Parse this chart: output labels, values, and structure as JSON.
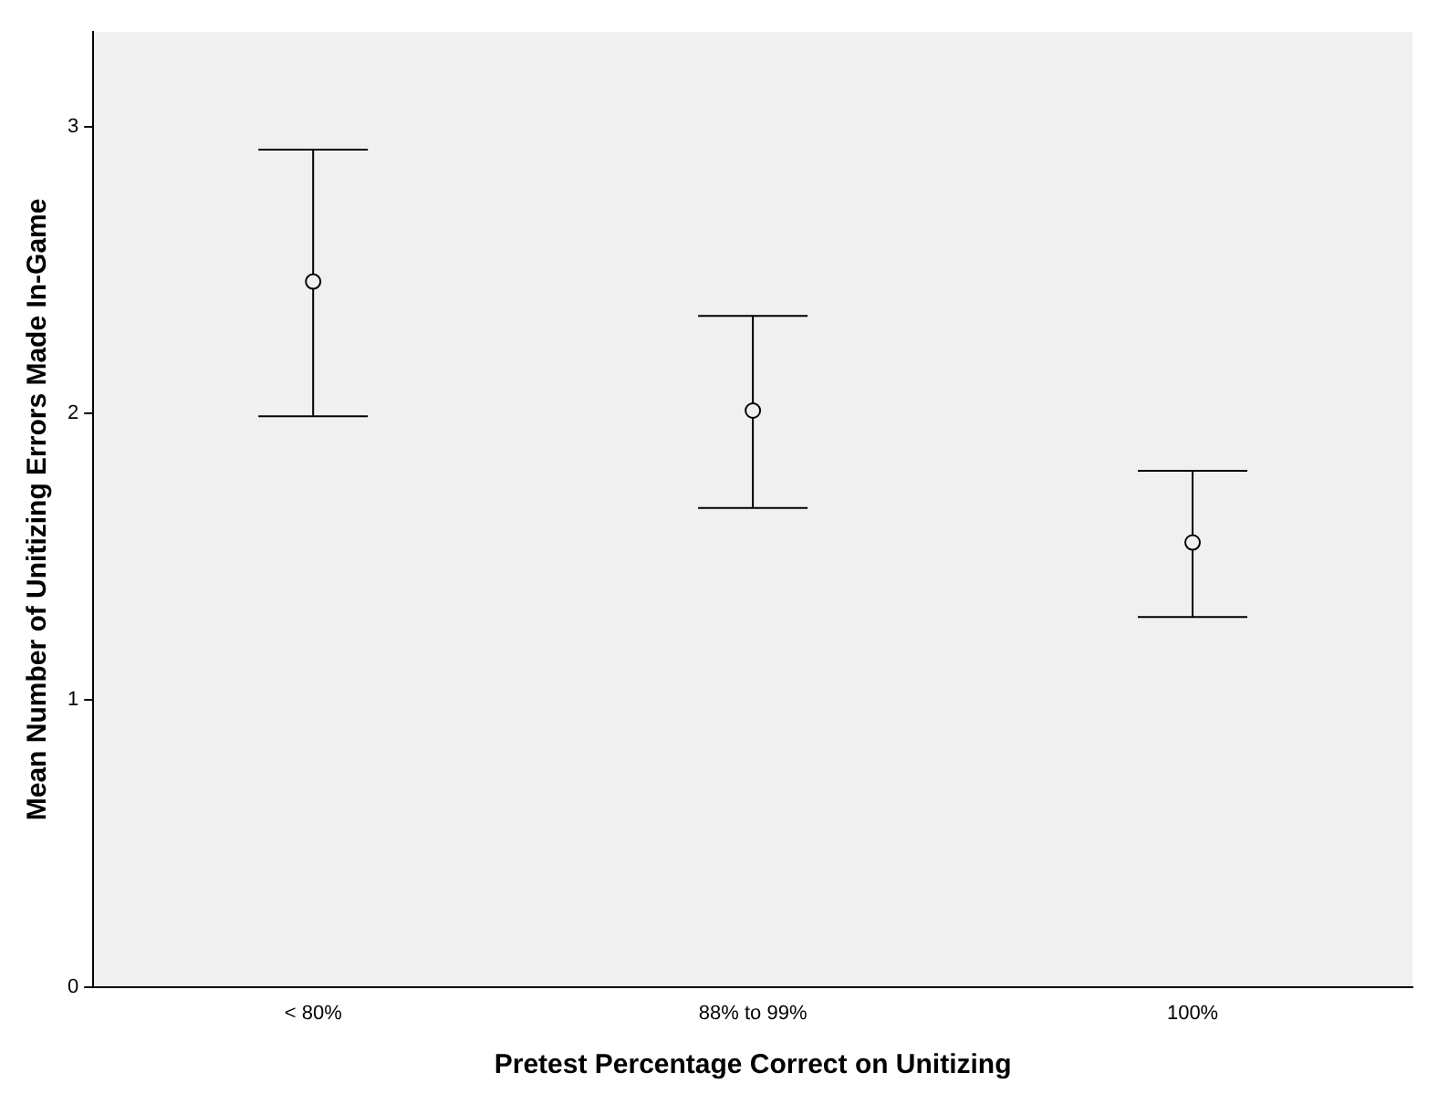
{
  "chart_data": {
    "type": "scatter",
    "xlabel": "Pretest Percentage Correct on Unitizing",
    "ylabel": "Mean Number of Unitizing Errors Made In-Game",
    "categories": [
      "< 80%",
      "88% to 99%",
      "100%"
    ],
    "values": [
      2.46,
      2.01,
      1.55
    ],
    "color": "#000000",
    "errors": [
      [
        1.99,
        2.92
      ],
      [
        1.67,
        2.34
      ],
      [
        1.29,
        1.8
      ]
    ],
    "ylim": [
      0,
      3.33
    ],
    "yticks": [
      0,
      1,
      2,
      3
    ],
    "grid": false,
    "marker": "circle"
  }
}
